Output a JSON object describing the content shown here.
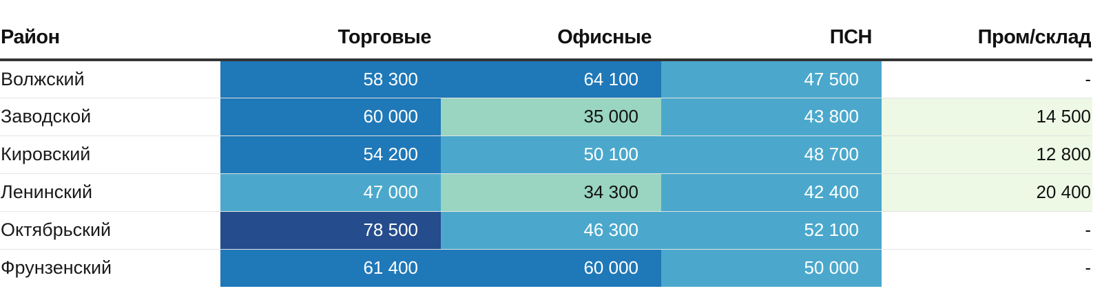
{
  "chart_data": {
    "type": "heatmap",
    "columns": [
      "Район",
      "Торговые",
      "Офисные",
      "ПСН",
      "Пром/склад"
    ],
    "rows": [
      {
        "label": "Волжский",
        "values": [
          "58 300",
          "64 100",
          "47 500",
          "-"
        ],
        "numbers": [
          58300,
          64100,
          47500,
          null
        ]
      },
      {
        "label": "Заводской",
        "values": [
          "60 000",
          "35 000",
          "43 800",
          "14 500"
        ],
        "numbers": [
          60000,
          35000,
          43800,
          14500
        ]
      },
      {
        "label": "Кировский",
        "values": [
          "54 200",
          "50 100",
          "48 700",
          "12 800"
        ],
        "numbers": [
          54200,
          50100,
          48700,
          12800
        ]
      },
      {
        "label": "Ленинский",
        "values": [
          "47 000",
          "34 300",
          "42 400",
          "20 400"
        ],
        "numbers": [
          47000,
          34300,
          42400,
          20400
        ]
      },
      {
        "label": "Октябрьский",
        "values": [
          "78 500",
          "46 300",
          "52 100",
          "-"
        ],
        "numbers": [
          78500,
          46300,
          52100,
          null
        ]
      },
      {
        "label": "Фрунзенский",
        "values": [
          "61 400",
          "60 000",
          "50 000",
          "-"
        ],
        "numbers": [
          61400,
          60000,
          50000,
          null
        ]
      }
    ],
    "color_scale": [
      {
        "min": 0,
        "max": 0,
        "bg": "#ffffff",
        "fg": "#111111"
      },
      {
        "min": 1,
        "max": 30000,
        "bg": "#edf8e5",
        "fg": "#111111"
      },
      {
        "min": 30000,
        "max": 40000,
        "bg": "#99d5c1",
        "fg": "#111111"
      },
      {
        "min": 40000,
        "max": 52500,
        "bg": "#4ba8cc",
        "fg": "#ffffff"
      },
      {
        "min": 52500,
        "max": 70000,
        "bg": "#1f78b8",
        "fg": "#ffffff"
      },
      {
        "min": 70000,
        "max": 100000,
        "bg": "#254c8c",
        "fg": "#ffffff"
      }
    ]
  }
}
